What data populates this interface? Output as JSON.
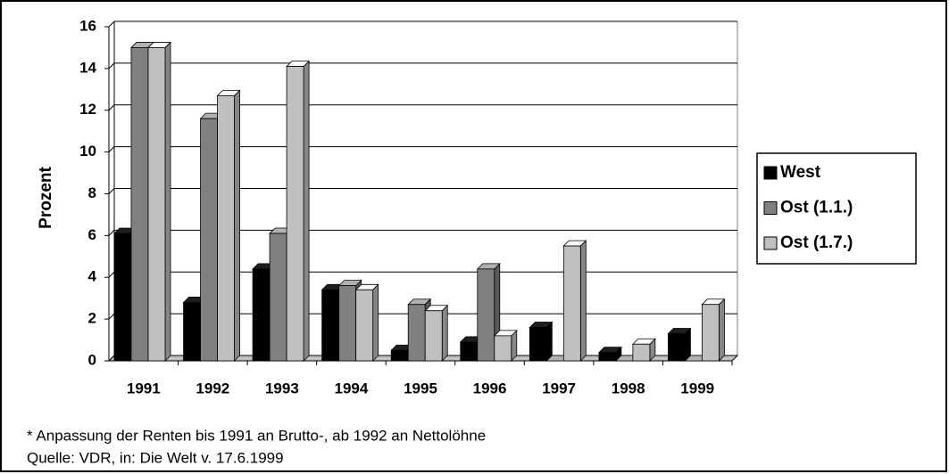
{
  "chart_data": {
    "type": "bar3d",
    "y_label": "Prozent",
    "footnote": "* Anpassung der Renten bis 1991 an Brutto-, ab 1992 an Nettolöhne",
    "source": "Quelle: VDR, in: Die Welt v. 17.6.1999",
    "categories": [
      "1991",
      "1992",
      "1993",
      "1994",
      "1995",
      "1996",
      "1997",
      "1998",
      "1999"
    ],
    "series": [
      {
        "name": "West",
        "color": "#000000",
        "values": [
          6.1,
          2.8,
          4.4,
          3.4,
          0.5,
          0.9,
          1.6,
          0.4,
          1.3
        ]
      },
      {
        "name": "Ost (1.1.)",
        "color": "#808080",
        "values": [
          15,
          11.6,
          6.1,
          3.6,
          2.7,
          4.4,
          0,
          0,
          0
        ]
      },
      {
        "name": "Ost (1.7.)",
        "color": "#c0c0c0",
        "values": [
          15,
          12.7,
          14.1,
          3.4,
          2.4,
          1.2,
          5.5,
          0.8,
          2.7
        ]
      }
    ],
    "ylim": [
      0,
      16
    ],
    "yticks": [
      0,
      2,
      4,
      6,
      8,
      10,
      12,
      14,
      16
    ],
    "grid": true,
    "legend": "right"
  }
}
